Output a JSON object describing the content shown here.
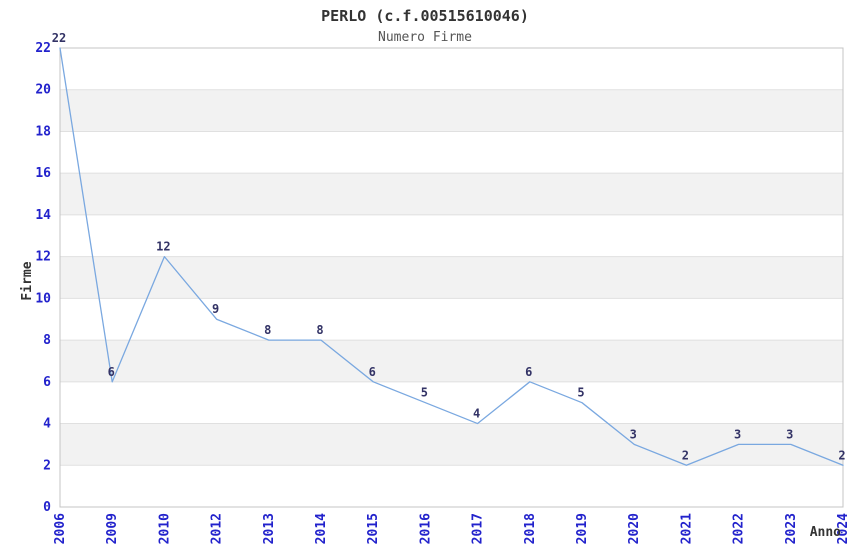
{
  "chart_data": {
    "type": "line",
    "title": "PERLO (c.f.00515610046)",
    "subtitle": "Numero Firme",
    "xlabel": "Anno",
    "ylabel": "Firme",
    "categories": [
      "2006",
      "2009",
      "2010",
      "2012",
      "2013",
      "2014",
      "2015",
      "2016",
      "2017",
      "2018",
      "2019",
      "2020",
      "2021",
      "2022",
      "2023",
      "2024"
    ],
    "values": [
      22,
      6,
      12,
      9,
      8,
      8,
      6,
      5,
      4,
      6,
      5,
      3,
      2,
      3,
      3,
      2
    ],
    "point_labels": [
      "22",
      "6",
      "12",
      "9",
      "8",
      "8",
      "6",
      "5",
      "4",
      "6",
      "5",
      "3",
      "2",
      "3",
      "3",
      "2"
    ],
    "ylim": [
      0,
      22
    ],
    "ytick_step": 2,
    "ytick_labels": [
      "0",
      "2",
      "4",
      "6",
      "8",
      "10",
      "12",
      "14",
      "16",
      "18",
      "20",
      "22"
    ],
    "grid": true,
    "banded_background": true,
    "legend": "none",
    "colors": {
      "line": "#7aa8e0",
      "tick_label": "#2222cc",
      "point_label": "#333366",
      "band": "#f2f2f2",
      "band_alt": "#ffffff",
      "grid": "#e0e0e0",
      "spine": "#c4c4c4",
      "title": "#333333",
      "subtitle": "#555555",
      "axis_label": "#333333",
      "background": "#ffffff"
    }
  }
}
